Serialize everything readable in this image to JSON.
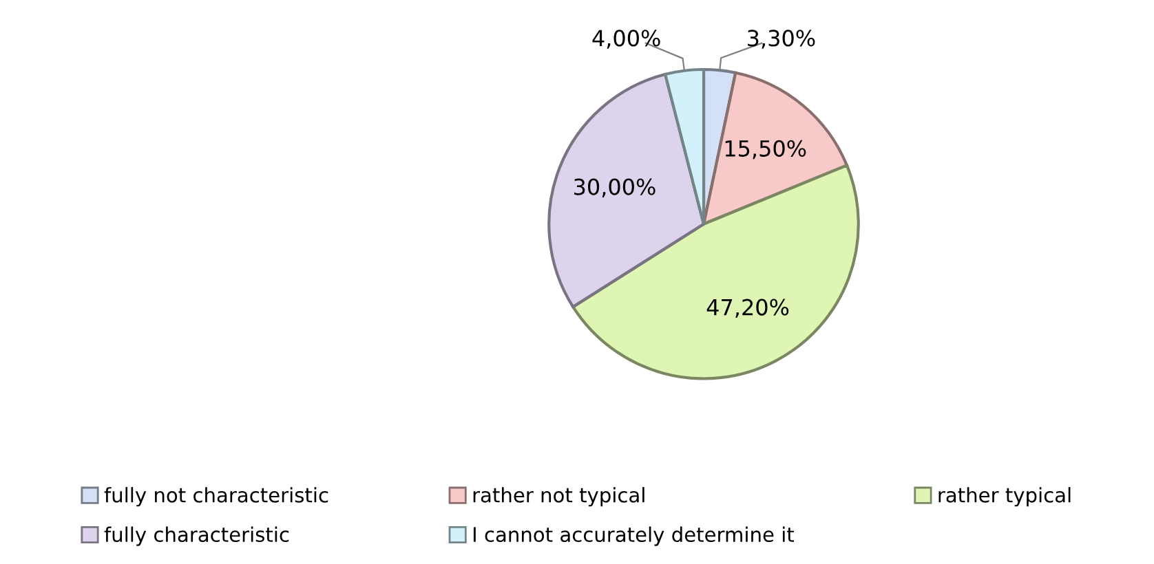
{
  "chart_data": {
    "type": "pie",
    "categories": [
      "fully not characteristic",
      "rather not typical",
      "rather typical",
      "fully characteristic",
      "I cannot accurately determine it"
    ],
    "values": [
      3.3,
      15.5,
      47.2,
      30.0,
      4.0
    ],
    "value_labels": [
      "3,30%",
      "15,50%",
      "47,20%",
      "30,00%",
      "4,00%"
    ],
    "colors": [
      "#d4e0f5",
      "#f7c9c8",
      "#dff5b4",
      "#ddd3ec",
      "#d2f1fa"
    ],
    "legend": "bottom"
  }
}
